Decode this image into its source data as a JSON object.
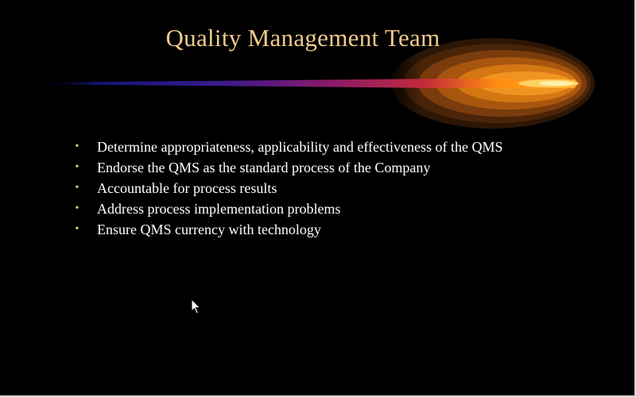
{
  "slide": {
    "title": "Quality Management Team",
    "bullets": [
      "Determine appropriateness, applicability and effectiveness of the QMS",
      "Endorse the QMS as the standard process of the Company",
      "Accountable for process results",
      "Address process implementation problems",
      "Ensure QMS currency with technology"
    ],
    "bullet_glyph": "•"
  },
  "colors": {
    "background": "#000000",
    "title": "#f1c98a",
    "text": "#ffffff",
    "comet_core": "#ffa020",
    "comet_tail_blue": "#1a1a8c",
    "comet_tail_magenta": "#a0205a"
  },
  "icons": {
    "cursor": "arrow-pointer-icon",
    "decoration": "comet-swoosh-icon"
  }
}
